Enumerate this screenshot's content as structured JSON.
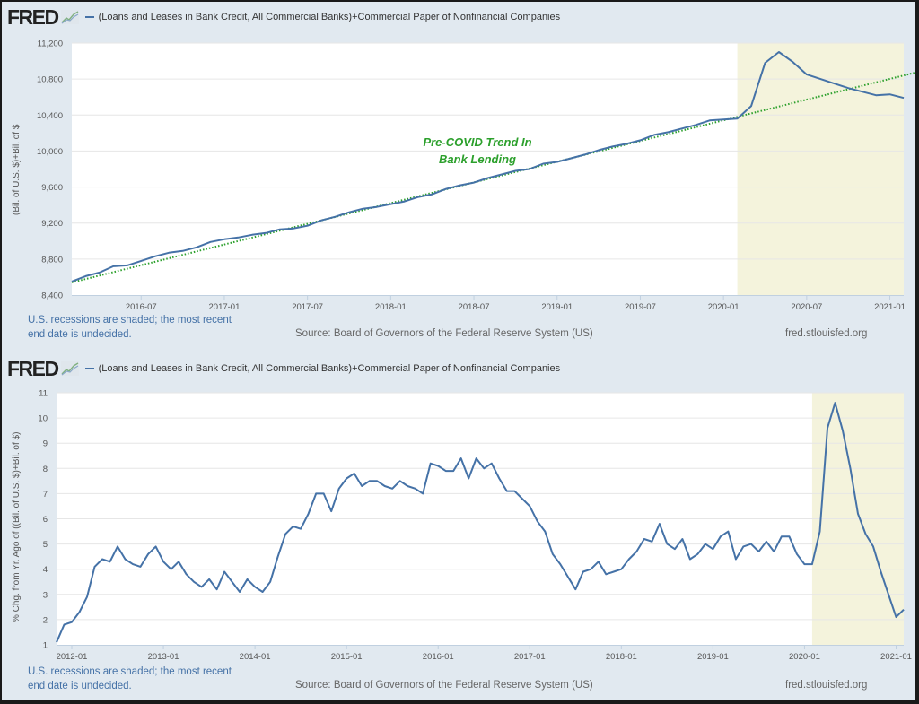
{
  "brand": {
    "logo_text": "FRED",
    "logo_icon": "fred-chart-icon"
  },
  "colors": {
    "series": "#4572a7",
    "trend": "#2ca02c",
    "recession": "#f4f3dc",
    "background": "#e1e9f0",
    "plot": "#ffffff"
  },
  "footer": {
    "recession_note_line1": "U.S. recessions are shaded; the most recent",
    "recession_note_line2": "end date is undecided.",
    "source": "Source: Board of Governors of the Federal Reserve System (US)",
    "site": "fred.stlouisfed.org"
  },
  "chart_data": [
    {
      "type": "line",
      "title": "(Loans and Leases in Bank Credit, All Commercial Banks)+Commercial Paper of Nonfinancial Companies",
      "xlabel": "",
      "ylabel": "(Bil. of U.S. $)+Bil. of $",
      "xlim": [
        "2016-02",
        "2021-02"
      ],
      "ylim": [
        8400,
        11200
      ],
      "yticks": [
        8400,
        8800,
        9200,
        9600,
        10000,
        10400,
        10800,
        11200
      ],
      "ytick_labels": [
        "8,400",
        "8,800",
        "9,200",
        "9,600",
        "10,000",
        "10,400",
        "10,800",
        "11,200"
      ],
      "xtick_labels": [
        "2016-07",
        "2017-01",
        "2017-07",
        "2018-01",
        "2018-07",
        "2019-01",
        "2019-07",
        "2020-01",
        "2020-07",
        "2021-01"
      ],
      "grid": true,
      "recessions": [
        {
          "start": "2020-02",
          "end": "2021-02"
        }
      ],
      "annotation": {
        "line1": "Pre-COVID Trend In",
        "line2": "Bank Lending"
      },
      "trend": {
        "name": "Pre-COVID Trend",
        "style": "dotted",
        "points": [
          [
            "2016-02",
            8540
          ],
          [
            "2021-02",
            10840
          ]
        ]
      },
      "series": [
        {
          "name": "(Loans and Leases in Bank Credit, All Commercial Banks)+Commercial Paper of Nonfinancial Companies",
          "points": [
            [
              "2016-02",
              8550
            ],
            [
              "2016-03",
              8610
            ],
            [
              "2016-04",
              8650
            ],
            [
              "2016-05",
              8720
            ],
            [
              "2016-06",
              8730
            ],
            [
              "2016-07",
              8780
            ],
            [
              "2016-08",
              8830
            ],
            [
              "2016-09",
              8870
            ],
            [
              "2016-10",
              8890
            ],
            [
              "2016-11",
              8930
            ],
            [
              "2016-12",
              8990
            ],
            [
              "2017-01",
              9020
            ],
            [
              "2017-02",
              9040
            ],
            [
              "2017-03",
              9070
            ],
            [
              "2017-04",
              9090
            ],
            [
              "2017-05",
              9130
            ],
            [
              "2017-06",
              9140
            ],
            [
              "2017-07",
              9170
            ],
            [
              "2017-08",
              9230
            ],
            [
              "2017-09",
              9270
            ],
            [
              "2017-10",
              9320
            ],
            [
              "2017-11",
              9360
            ],
            [
              "2017-12",
              9380
            ],
            [
              "2018-01",
              9410
            ],
            [
              "2018-02",
              9440
            ],
            [
              "2018-03",
              9490
            ],
            [
              "2018-04",
              9520
            ],
            [
              "2018-05",
              9580
            ],
            [
              "2018-06",
              9620
            ],
            [
              "2018-07",
              9650
            ],
            [
              "2018-08",
              9700
            ],
            [
              "2018-09",
              9740
            ],
            [
              "2018-10",
              9780
            ],
            [
              "2018-11",
              9800
            ],
            [
              "2018-12",
              9860
            ],
            [
              "2019-01",
              9880
            ],
            [
              "2019-02",
              9920
            ],
            [
              "2019-03",
              9960
            ],
            [
              "2019-04",
              10010
            ],
            [
              "2019-05",
              10050
            ],
            [
              "2019-06",
              10080
            ],
            [
              "2019-07",
              10120
            ],
            [
              "2019-08",
              10180
            ],
            [
              "2019-09",
              10210
            ],
            [
              "2019-10",
              10250
            ],
            [
              "2019-11",
              10290
            ],
            [
              "2019-12",
              10340
            ],
            [
              "2020-01",
              10350
            ],
            [
              "2020-02",
              10360
            ],
            [
              "2020-03",
              10500
            ],
            [
              "2020-04",
              10980
            ],
            [
              "2020-05",
              11100
            ],
            [
              "2020-06",
              10990
            ],
            [
              "2020-07",
              10850
            ],
            [
              "2020-08",
              10800
            ],
            [
              "2020-09",
              10750
            ],
            [
              "2020-10",
              10700
            ],
            [
              "2020-11",
              10660
            ],
            [
              "2020-12",
              10620
            ],
            [
              "2021-01",
              10630
            ],
            [
              "2021-02",
              10590
            ]
          ]
        }
      ]
    },
    {
      "type": "line",
      "title": "(Loans and Leases in Bank Credit, All Commercial Banks)+Commercial Paper of Nonfinancial Companies",
      "xlabel": "",
      "ylabel": "% Chg. from Yr. Ago of ((Bil. of U.S. $)+Bil. of $)",
      "xlim": [
        "2011-11",
        "2021-02"
      ],
      "ylim": [
        1,
        11
      ],
      "yticks": [
        1,
        2,
        3,
        4,
        5,
        6,
        7,
        8,
        9,
        10,
        11
      ],
      "ytick_labels": [
        "1",
        "2",
        "3",
        "4",
        "5",
        "6",
        "7",
        "8",
        "9",
        "10",
        "11"
      ],
      "xtick_labels": [
        "2012-01",
        "2013-01",
        "2014-01",
        "2015-01",
        "2016-01",
        "2017-01",
        "2018-01",
        "2019-01",
        "2020-01",
        "2021-01"
      ],
      "grid": true,
      "recessions": [
        {
          "start": "2020-02",
          "end": "2021-02"
        }
      ],
      "series": [
        {
          "name": "% Chg. from Yr. Ago",
          "points": [
            [
              "2011-11",
              1.1
            ],
            [
              "2011-12",
              1.8
            ],
            [
              "2012-01",
              1.9
            ],
            [
              "2012-02",
              2.3
            ],
            [
              "2012-03",
              2.9
            ],
            [
              "2012-04",
              4.1
            ],
            [
              "2012-05",
              4.4
            ],
            [
              "2012-06",
              4.3
            ],
            [
              "2012-07",
              4.9
            ],
            [
              "2012-08",
              4.4
            ],
            [
              "2012-09",
              4.2
            ],
            [
              "2012-10",
              4.1
            ],
            [
              "2012-11",
              4.6
            ],
            [
              "2012-12",
              4.9
            ],
            [
              "2013-01",
              4.3
            ],
            [
              "2013-02",
              4.0
            ],
            [
              "2013-03",
              4.3
            ],
            [
              "2013-04",
              3.8
            ],
            [
              "2013-05",
              3.5
            ],
            [
              "2013-06",
              3.3
            ],
            [
              "2013-07",
              3.6
            ],
            [
              "2013-08",
              3.2
            ],
            [
              "2013-09",
              3.9
            ],
            [
              "2013-10",
              3.5
            ],
            [
              "2013-11",
              3.1
            ],
            [
              "2013-12",
              3.6
            ],
            [
              "2014-01",
              3.3
            ],
            [
              "2014-02",
              3.1
            ],
            [
              "2014-03",
              3.5
            ],
            [
              "2014-04",
              4.5
            ],
            [
              "2014-05",
              5.4
            ],
            [
              "2014-06",
              5.7
            ],
            [
              "2014-07",
              5.6
            ],
            [
              "2014-08",
              6.2
            ],
            [
              "2014-09",
              7.0
            ],
            [
              "2014-10",
              7.0
            ],
            [
              "2014-11",
              6.3
            ],
            [
              "2014-12",
              7.2
            ],
            [
              "2015-01",
              7.6
            ],
            [
              "2015-02",
              7.8
            ],
            [
              "2015-03",
              7.3
            ],
            [
              "2015-04",
              7.5
            ],
            [
              "2015-05",
              7.5
            ],
            [
              "2015-06",
              7.3
            ],
            [
              "2015-07",
              7.2
            ],
            [
              "2015-08",
              7.5
            ],
            [
              "2015-09",
              7.3
            ],
            [
              "2015-10",
              7.2
            ],
            [
              "2015-11",
              7.0
            ],
            [
              "2015-12",
              8.2
            ],
            [
              "2016-01",
              8.1
            ],
            [
              "2016-02",
              7.9
            ],
            [
              "2016-03",
              7.9
            ],
            [
              "2016-04",
              8.4
            ],
            [
              "2016-05",
              7.6
            ],
            [
              "2016-06",
              8.4
            ],
            [
              "2016-07",
              8.0
            ],
            [
              "2016-08",
              8.2
            ],
            [
              "2016-09",
              7.6
            ],
            [
              "2016-10",
              7.1
            ],
            [
              "2016-11",
              7.1
            ],
            [
              "2016-12",
              6.8
            ],
            [
              "2017-01",
              6.5
            ],
            [
              "2017-02",
              5.9
            ],
            [
              "2017-03",
              5.5
            ],
            [
              "2017-04",
              4.6
            ],
            [
              "2017-05",
              4.2
            ],
            [
              "2017-06",
              3.7
            ],
            [
              "2017-07",
              3.2
            ],
            [
              "2017-08",
              3.9
            ],
            [
              "2017-09",
              4.0
            ],
            [
              "2017-10",
              4.3
            ],
            [
              "2017-11",
              3.8
            ],
            [
              "2017-12",
              3.9
            ],
            [
              "2018-01",
              4.0
            ],
            [
              "2018-02",
              4.4
            ],
            [
              "2018-03",
              4.7
            ],
            [
              "2018-04",
              5.2
            ],
            [
              "2018-05",
              5.1
            ],
            [
              "2018-06",
              5.8
            ],
            [
              "2018-07",
              5.0
            ],
            [
              "2018-08",
              4.8
            ],
            [
              "2018-09",
              5.2
            ],
            [
              "2018-10",
              4.4
            ],
            [
              "2018-11",
              4.6
            ],
            [
              "2018-12",
              5.0
            ],
            [
              "2019-01",
              4.8
            ],
            [
              "2019-02",
              5.3
            ],
            [
              "2019-03",
              5.5
            ],
            [
              "2019-04",
              4.4
            ],
            [
              "2019-05",
              4.9
            ],
            [
              "2019-06",
              5.0
            ],
            [
              "2019-07",
              4.7
            ],
            [
              "2019-08",
              5.1
            ],
            [
              "2019-09",
              4.7
            ],
            [
              "2019-10",
              5.3
            ],
            [
              "2019-11",
              5.3
            ],
            [
              "2019-12",
              4.6
            ],
            [
              "2020-01",
              4.2
            ],
            [
              "2020-02",
              4.2
            ],
            [
              "2020-03",
              5.5
            ],
            [
              "2020-04",
              9.6
            ],
            [
              "2020-05",
              10.6
            ],
            [
              "2020-06",
              9.5
            ],
            [
              "2020-07",
              8.0
            ],
            [
              "2020-08",
              6.2
            ],
            [
              "2020-09",
              5.4
            ],
            [
              "2020-10",
              4.9
            ],
            [
              "2020-11",
              3.9
            ],
            [
              "2020-12",
              3.0
            ],
            [
              "2021-01",
              2.1
            ],
            [
              "2021-02",
              2.4
            ]
          ]
        }
      ]
    }
  ]
}
